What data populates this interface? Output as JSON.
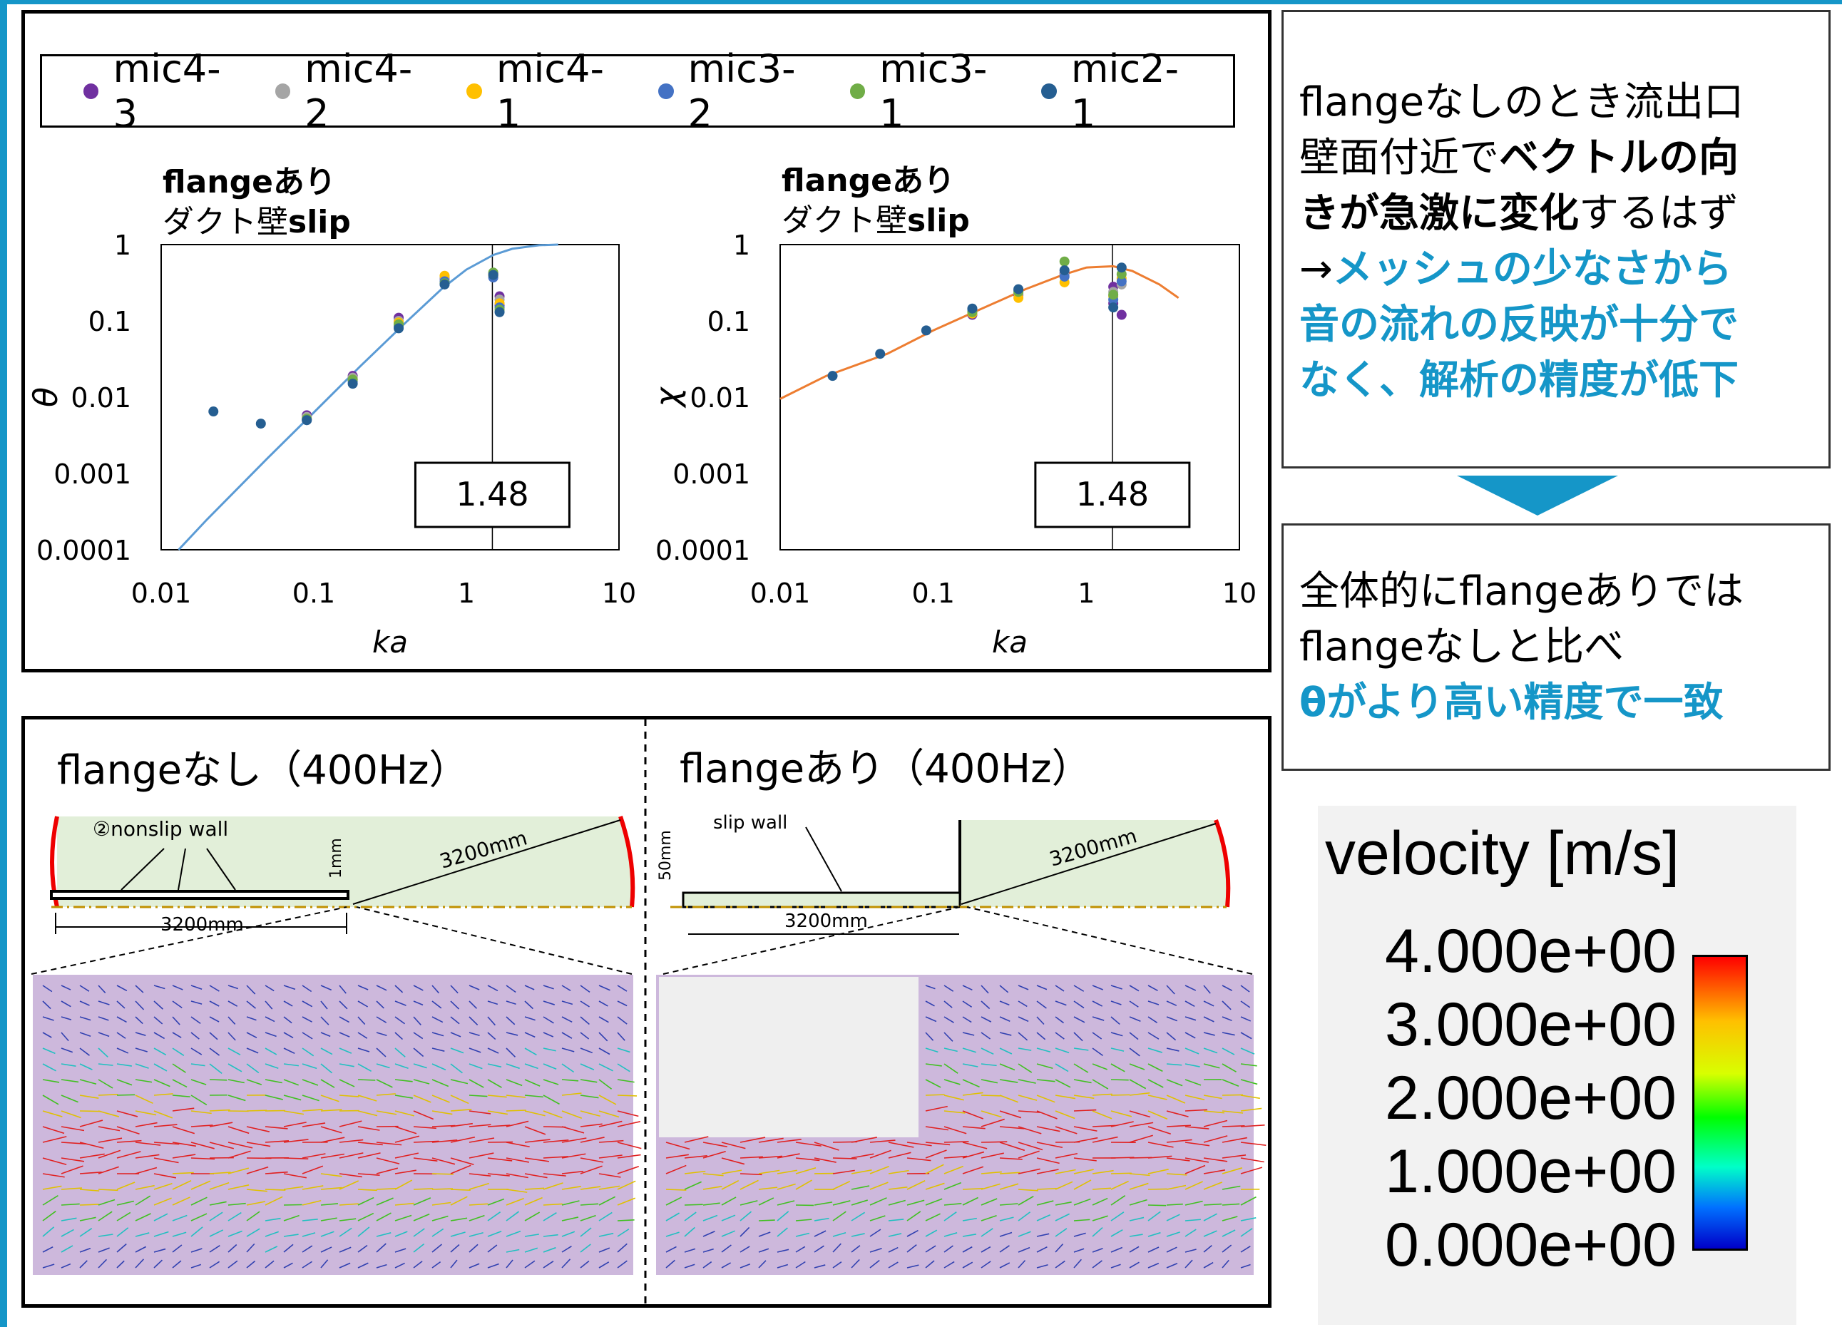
{
  "legend": [
    {
      "name": "mic4-3",
      "color": "#7030a0"
    },
    {
      "name": "mic4-2",
      "color": "#a5a5a5"
    },
    {
      "name": "mic4-1",
      "color": "#ffc000"
    },
    {
      "name": "mic3-2",
      "color": "#4472c4"
    },
    {
      "name": "mic3-1",
      "color": "#70ad47"
    },
    {
      "name": "mic2-1",
      "color": "#255e91"
    }
  ],
  "chart_data": [
    {
      "type": "scatter",
      "title": "flangeあり",
      "subtitle_plain": "ダクト壁",
      "subtitle_bold": "slip",
      "xlabel": "ka",
      "ylabel": "θ",
      "xscale": "log",
      "yscale": "log",
      "xlim": [
        0.01,
        10
      ],
      "ylim": [
        0.0001,
        1
      ],
      "xticks": [
        "0.01",
        "0.1",
        "1",
        "10"
      ],
      "yticks": [
        "0.0001",
        "0.001",
        "0.01",
        "0.1",
        "1"
      ],
      "vline_x": 1.48,
      "annotation": "1.48",
      "line_color": "#5b9bd5",
      "theory_curve": [
        [
          0.013,
          0.0001
        ],
        [
          0.02,
          0.00025
        ],
        [
          0.05,
          0.0016
        ],
        [
          0.1,
          0.0063
        ],
        [
          0.2,
          0.025
        ],
        [
          0.4,
          0.095
        ],
        [
          0.7,
          0.27
        ],
        [
          1.0,
          0.47
        ],
        [
          1.5,
          0.73
        ],
        [
          2.0,
          0.88
        ],
        [
          3.0,
          0.98
        ],
        [
          4.0,
          1.0
        ]
      ],
      "series": [
        {
          "name": "mic4-3",
          "points": [
            [
              0.09,
              0.0058
            ],
            [
              0.18,
              0.019
            ],
            [
              0.36,
              0.11
            ],
            [
              0.72,
              0.36
            ],
            [
              1.5,
              0.42
            ],
            [
              1.65,
              0.21
            ],
            [
              1.65,
              0.16
            ]
          ]
        },
        {
          "name": "mic4-2",
          "points": [
            [
              0.09,
              0.0055
            ],
            [
              0.18,
              0.018
            ],
            [
              0.36,
              0.1
            ],
            [
              0.72,
              0.37
            ],
            [
              1.5,
              0.41
            ],
            [
              1.65,
              0.19
            ]
          ]
        },
        {
          "name": "mic4-1",
          "points": [
            [
              0.09,
              0.0052
            ],
            [
              0.18,
              0.017
            ],
            [
              0.36,
              0.095
            ],
            [
              0.72,
              0.39
            ],
            [
              1.5,
              0.39
            ],
            [
              1.65,
              0.17
            ]
          ]
        },
        {
          "name": "mic3-2",
          "points": [
            [
              0.09,
              0.005
            ],
            [
              0.18,
              0.016
            ],
            [
              0.36,
              0.085
            ],
            [
              0.72,
              0.33
            ],
            [
              1.5,
              0.37
            ],
            [
              1.65,
              0.15
            ]
          ]
        },
        {
          "name": "mic3-1",
          "points": [
            [
              0.09,
              0.0052
            ],
            [
              0.18,
              0.017
            ],
            [
              0.36,
              0.09
            ],
            [
              0.72,
              0.31
            ],
            [
              1.5,
              0.43
            ],
            [
              1.65,
              0.14
            ]
          ]
        },
        {
          "name": "mic2-1",
          "points": [
            [
              0.022,
              0.0065
            ],
            [
              0.045,
              0.0045
            ],
            [
              0.09,
              0.005
            ],
            [
              0.18,
              0.015
            ],
            [
              0.36,
              0.08
            ],
            [
              0.72,
              0.3
            ],
            [
              1.5,
              0.4
            ],
            [
              1.65,
              0.13
            ]
          ]
        }
      ]
    },
    {
      "type": "scatter",
      "title": "flangeあり",
      "subtitle_plain": "ダクト壁",
      "subtitle_bold": "slip",
      "xlabel": "ka",
      "ylabel": "χ",
      "xscale": "log",
      "yscale": "log",
      "xlim": [
        0.01,
        10
      ],
      "ylim": [
        0.0001,
        1
      ],
      "xticks": [
        "0.01",
        "0.1",
        "1",
        "10"
      ],
      "yticks": [
        "0.0001",
        "0.001",
        "0.01",
        "0.1",
        "1"
      ],
      "vline_x": 1.48,
      "annotation": "1.48",
      "line_color": "#ed7d31",
      "theory_curve": [
        [
          0.01,
          0.0095
        ],
        [
          0.02,
          0.019
        ],
        [
          0.05,
          0.037
        ],
        [
          0.1,
          0.075
        ],
        [
          0.2,
          0.14
        ],
        [
          0.4,
          0.26
        ],
        [
          0.7,
          0.4
        ],
        [
          1.0,
          0.5
        ],
        [
          1.5,
          0.52
        ],
        [
          2.0,
          0.45
        ],
        [
          3.0,
          0.3
        ],
        [
          4.0,
          0.2
        ]
      ],
      "series": [
        {
          "name": "mic4-3",
          "points": [
            [
              0.18,
              0.12
            ],
            [
              0.36,
              0.22
            ],
            [
              0.72,
              0.42
            ],
            [
              1.5,
              0.28
            ],
            [
              1.5,
              0.17
            ],
            [
              1.7,
              0.12
            ]
          ]
        },
        {
          "name": "mic4-2",
          "points": [
            [
              0.18,
              0.13
            ],
            [
              0.36,
              0.23
            ],
            [
              0.72,
              0.4
            ],
            [
              1.5,
              0.24
            ],
            [
              1.7,
              0.3
            ]
          ]
        },
        {
          "name": "mic4-1",
          "points": [
            [
              0.18,
              0.125
            ],
            [
              0.36,
              0.2
            ],
            [
              0.72,
              0.32
            ],
            [
              1.5,
              0.21
            ],
            [
              1.7,
              0.36
            ]
          ]
        },
        {
          "name": "mic3-2",
          "points": [
            [
              0.18,
              0.14
            ],
            [
              0.36,
              0.25
            ],
            [
              0.72,
              0.38
            ],
            [
              1.5,
              0.19
            ],
            [
              1.7,
              0.33
            ]
          ]
        },
        {
          "name": "mic3-1",
          "points": [
            [
              0.18,
              0.13
            ],
            [
              0.36,
              0.24
            ],
            [
              0.72,
              0.6
            ],
            [
              1.5,
              0.22
            ],
            [
              1.7,
              0.41
            ]
          ]
        },
        {
          "name": "mic2-1",
          "points": [
            [
              0.022,
              0.019
            ],
            [
              0.045,
              0.037
            ],
            [
              0.09,
              0.075
            ],
            [
              0.18,
              0.145
            ],
            [
              0.36,
              0.26
            ],
            [
              0.72,
              0.46
            ],
            [
              1.5,
              0.15
            ],
            [
              1.7,
              0.5
            ]
          ]
        }
      ]
    }
  ],
  "notes": {
    "note1": [
      {
        "text": "flangeなしのとき流出口\n壁面付近で",
        "style": "plain"
      },
      {
        "text": "ベクトルの向\nきが急激に変化",
        "style": "bold"
      },
      {
        "text": "するはず\n→",
        "style": "plain"
      },
      {
        "text": "メッシュの少なさから\n音の流れの反映が十分で\nなく、解析の精度が低下",
        "style": "hl"
      }
    ],
    "note2": [
      {
        "text": "全体的にflangeありでは\nflangeなしと比べ\n",
        "style": "plain"
      },
      {
        "text": "θがより高い精度で一致",
        "style": "hl"
      }
    ]
  },
  "vector_panels": [
    {
      "title": "flangeなし（400Hz）",
      "wall_label": "②nonslip wall",
      "duct_length": "3200mm",
      "radius": "3200mm",
      "gap": "1mm"
    },
    {
      "title": "flangeあり（400Hz）",
      "wall_label": "slip wall",
      "duct_length": "3200mm",
      "radius": "3200mm",
      "gap": "50mm"
    }
  ],
  "velocity_scale": {
    "title": "velocity [m/s]",
    "labels": [
      "4.000e+00",
      "3.000e+00",
      "2.000e+00",
      "1.000e+00",
      "0.000e+00"
    ]
  }
}
